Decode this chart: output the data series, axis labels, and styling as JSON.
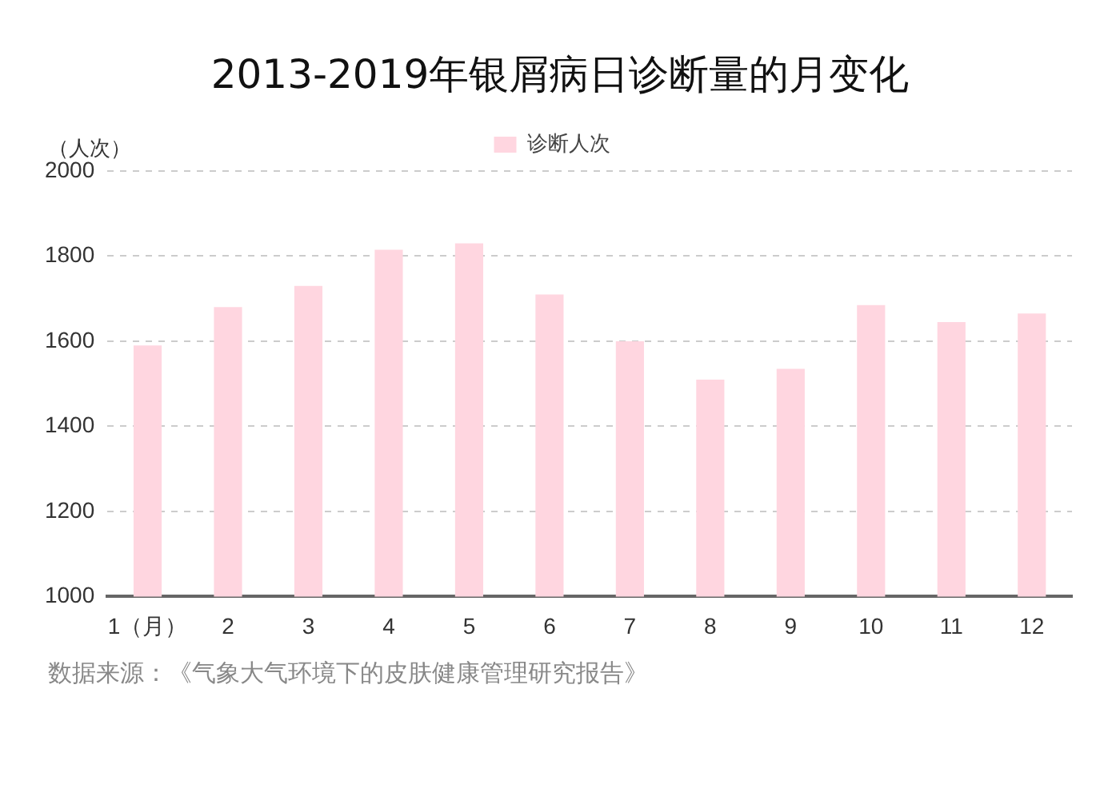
{
  "chart_data": {
    "type": "bar",
    "title": "2013-2019年银屑病日诊断量的月变化",
    "ylabel": "（人次）",
    "categories": [
      "1（月）",
      "2",
      "3",
      "4",
      "5",
      "6",
      "7",
      "8",
      "9",
      "10",
      "11",
      "12"
    ],
    "series": [
      {
        "name": "诊断人次",
        "color": "#ffd6e0",
        "values": [
          1590,
          1680,
          1730,
          1815,
          1830,
          1710,
          1600,
          1510,
          1535,
          1685,
          1645,
          1665
        ]
      }
    ],
    "ylim": [
      1000,
      2000
    ],
    "yticks": [
      1000,
      1200,
      1400,
      1600,
      1800,
      2000
    ],
    "grid": "y",
    "legend": "top",
    "annotations": [
      "数据来源：《气象大气环境下的皮肤健康管理研究报告》"
    ]
  }
}
